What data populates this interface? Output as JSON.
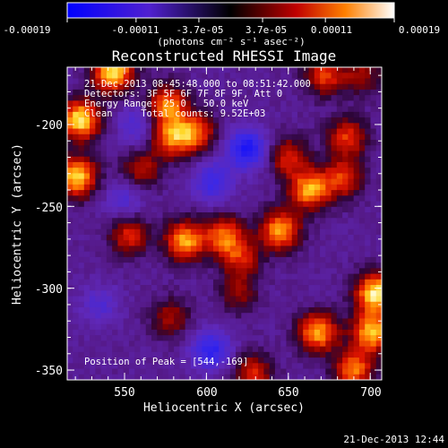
{
  "chart_data": {
    "type": "heatmap",
    "title": "Reconstructed RHESSI Image",
    "xlabel": "Heliocentric X (arcsec)",
    "ylabel": "Heliocentric Y (arcsec)",
    "xlim": [
      515,
      707
    ],
    "ylim": [
      -356,
      -165
    ],
    "x_ticks": [
      550,
      600,
      650,
      700
    ],
    "x_tick_labels": [
      "550",
      "600",
      "650",
      "700"
    ],
    "y_ticks": [
      -200,
      -250,
      -300,
      -350
    ],
    "y_tick_labels": [
      "-200",
      "-250",
      "-300",
      "-350"
    ],
    "colorbar": {
      "min": -0.00019,
      "max": 0.00019,
      "tick_labels": [
        "-0.00019",
        "-0.00011",
        "-3.7e-05",
        "3.7e-05",
        "0.00011",
        "0.00019"
      ],
      "unit_label": "(photons cm⁻² s⁻¹ asec⁻²)"
    },
    "annotations": {
      "time_range": "21-Dec-2013 08:45:48.000 to 08:51:42.000",
      "detectors": "Detectors: 3F 5F 6F 7F 8F 9F, Att 0",
      "energy_range": "Energy Range: 25.0 - 50.0 keV",
      "clean_counts": "Clean     Total counts: 9.52E+03",
      "peak_position": "Position of Peak = [544,-169]"
    },
    "sources": [
      {
        "x": 523,
        "y": -197,
        "amp": 1.0
      },
      {
        "x": 521,
        "y": -232,
        "amp": 0.95
      },
      {
        "x": 543,
        "y": -168,
        "amp": 1.0
      },
      {
        "x": 576,
        "y": -188,
        "amp": 0.75
      },
      {
        "x": 578,
        "y": -208,
        "amp": 0.7
      },
      {
        "x": 593,
        "y": -205,
        "amp": 0.7
      },
      {
        "x": 560,
        "y": -228,
        "amp": 0.45
      },
      {
        "x": 553,
        "y": -268,
        "amp": 0.55
      },
      {
        "x": 587,
        "y": -271,
        "amp": 0.85
      },
      {
        "x": 611,
        "y": -268,
        "amp": 0.7
      },
      {
        "x": 621,
        "y": -282,
        "amp": 0.5
      },
      {
        "x": 650,
        "y": -220,
        "amp": 0.55
      },
      {
        "x": 663,
        "y": -240,
        "amp": 0.85
      },
      {
        "x": 683,
        "y": -233,
        "amp": 0.6
      },
      {
        "x": 686,
        "y": -208,
        "amp": 0.6
      },
      {
        "x": 672,
        "y": -170,
        "amp": 0.6
      },
      {
        "x": 695,
        "y": -170,
        "amp": 0.4
      },
      {
        "x": 645,
        "y": -265,
        "amp": 0.85
      },
      {
        "x": 668,
        "y": -327,
        "amp": 0.85
      },
      {
        "x": 703,
        "y": -303,
        "amp": 1.0
      },
      {
        "x": 701,
        "y": -327,
        "amp": 0.9
      },
      {
        "x": 690,
        "y": -350,
        "amp": 0.75
      },
      {
        "x": 628,
        "y": -352,
        "amp": 0.55
      },
      {
        "x": 578,
        "y": -318,
        "amp": 0.4
      },
      {
        "x": 620,
        "y": -303,
        "amp": 0.35
      },
      {
        "x": 625,
        "y": -215,
        "amp": -0.75
      },
      {
        "x": 604,
        "y": -235,
        "amp": -0.5
      },
      {
        "x": 558,
        "y": -200,
        "amp": -0.35
      },
      {
        "x": 550,
        "y": -245,
        "amp": -0.3
      },
      {
        "x": 603,
        "y": -338,
        "amp": -0.6
      },
      {
        "x": 535,
        "y": -310,
        "amp": -0.3
      }
    ]
  },
  "footer": {
    "timestamp": "21-Dec-2013 12:44"
  }
}
